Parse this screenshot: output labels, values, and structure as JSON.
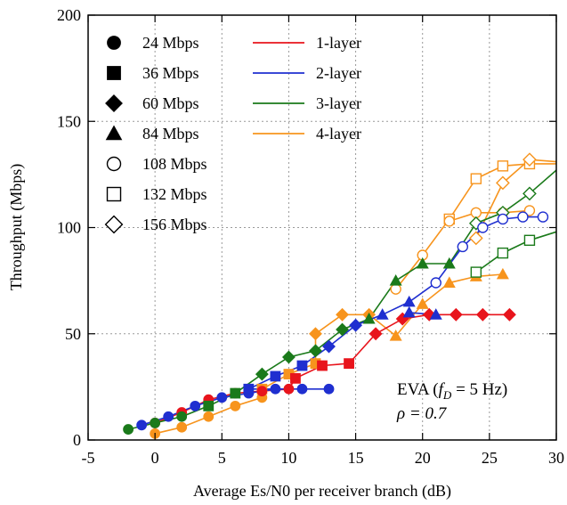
{
  "chart_data": {
    "type": "line",
    "xlabel": "Average Es/N0 per receiver branch (dB)",
    "ylabel": "Throughput (Mbps)",
    "xlim": [
      -5,
      30
    ],
    "ylim": [
      0,
      200
    ],
    "xticks": [
      "-5",
      "0",
      "5",
      "10",
      "15",
      "20",
      "25",
      "30"
    ],
    "yticks": [
      "0",
      "50",
      "100",
      "150",
      "200"
    ],
    "grid": true,
    "legend_markers": [
      {
        "label": "24 Mbps",
        "marker": "filled-circle"
      },
      {
        "label": "36 Mbps",
        "marker": "filled-square"
      },
      {
        "label": "60 Mbps",
        "marker": "filled-diamond"
      },
      {
        "label": "84 Mbps",
        "marker": "filled-triangle"
      },
      {
        "label": "108 Mbps",
        "marker": "open-circle"
      },
      {
        "label": "132 Mbps",
        "marker": "open-square"
      },
      {
        "label": "156 Mbps",
        "marker": "open-diamond"
      }
    ],
    "legend_lines": [
      {
        "label": "1-layer",
        "color": "#e8141c"
      },
      {
        "label": "2-layer",
        "color": "#1f2fd0"
      },
      {
        "label": "3-layer",
        "color": "#1a7a1a"
      },
      {
        "label": "4-layer",
        "color": "#f7941d"
      }
    ],
    "annotation": {
      "line1_prefix": "EVA (",
      "f_symbol": "f",
      "f_sub": "D",
      "line1_suffix": " = 5 Hz)",
      "rho": "ρ = 0.7"
    },
    "series": [
      {
        "layer": 1,
        "color": "#e8141c",
        "points": [
          {
            "x": 0,
            "y": 8,
            "m": "filled-circle"
          },
          {
            "x": 2,
            "y": 13,
            "m": "filled-circle"
          },
          {
            "x": 4,
            "y": 19,
            "m": "filled-circle"
          },
          {
            "x": 6,
            "y": 22,
            "m": "filled-circle"
          },
          {
            "x": 8,
            "y": 23,
            "m": "filled-circle"
          },
          {
            "x": 10,
            "y": 24,
            "m": "filled-circle"
          },
          {
            "x": 10.5,
            "y": 29,
            "m": "filled-square"
          },
          {
            "x": 12.5,
            "y": 35,
            "m": "filled-square"
          },
          {
            "x": 14.5,
            "y": 36,
            "m": "filled-square"
          },
          {
            "x": 16.5,
            "y": 50,
            "m": "filled-diamond"
          },
          {
            "x": 18.5,
            "y": 57,
            "m": "filled-diamond"
          },
          {
            "x": 20.5,
            "y": 59,
            "m": "filled-diamond"
          },
          {
            "x": 22.5,
            "y": 59,
            "m": "filled-diamond"
          },
          {
            "x": 24.5,
            "y": 59,
            "m": "filled-diamond"
          },
          {
            "x": 26.5,
            "y": 59,
            "m": "filled-diamond"
          }
        ]
      },
      {
        "layer": 2,
        "color": "#1f2fd0",
        "points": [
          {
            "x": -1,
            "y": 7,
            "m": "filled-circle"
          },
          {
            "x": 1,
            "y": 11,
            "m": "filled-circle"
          },
          {
            "x": 3,
            "y": 16,
            "m": "filled-circle"
          },
          {
            "x": 5,
            "y": 20,
            "m": "filled-circle"
          },
          {
            "x": 7,
            "y": 22,
            "m": "filled-circle"
          },
          {
            "x": 9,
            "y": 24,
            "m": "filled-circle"
          },
          {
            "x": 11,
            "y": 24,
            "m": "filled-circle"
          },
          {
            "x": 13,
            "y": 24,
            "m": "filled-circle"
          },
          {
            "x": 7,
            "y": 24,
            "m": "filled-square"
          },
          {
            "x": 9,
            "y": 30,
            "m": "filled-square"
          },
          {
            "x": 11,
            "y": 35,
            "m": "filled-square"
          },
          {
            "x": 13,
            "y": 44,
            "m": "filled-diamond"
          },
          {
            "x": 15,
            "y": 54,
            "m": "filled-diamond"
          },
          {
            "x": 17,
            "y": 59,
            "m": "filled-triangle"
          },
          {
            "x": 19,
            "y": 65,
            "m": "filled-triangle"
          },
          {
            "x": 21,
            "y": 74,
            "m": "open-circle"
          },
          {
            "x": 23,
            "y": 91,
            "m": "open-circle"
          },
          {
            "x": 24.5,
            "y": 100,
            "m": "open-circle"
          },
          {
            "x": 26,
            "y": 104,
            "m": "open-circle"
          },
          {
            "x": 27.5,
            "y": 105,
            "m": "open-circle"
          },
          {
            "x": 29,
            "y": 105,
            "m": "open-circle"
          }
        ],
        "flat": [
          {
            "x": 19,
            "y": 60,
            "m": "filled-triangle"
          },
          {
            "x": 21,
            "y": 59,
            "m": "filled-triangle"
          }
        ]
      },
      {
        "layer": 3,
        "color": "#1a7a1a",
        "points": [
          {
            "x": -2,
            "y": 5,
            "m": "filled-circle"
          },
          {
            "x": 0,
            "y": 8,
            "m": "filled-circle"
          },
          {
            "x": 2,
            "y": 11,
            "m": "filled-circle"
          },
          {
            "x": 4,
            "y": 16,
            "m": "filled-square"
          },
          {
            "x": 6,
            "y": 22,
            "m": "filled-square"
          },
          {
            "x": 8,
            "y": 31,
            "m": "filled-diamond"
          },
          {
            "x": 10,
            "y": 39,
            "m": "filled-diamond"
          },
          {
            "x": 12,
            "y": 42,
            "m": "filled-diamond"
          },
          {
            "x": 14,
            "y": 52,
            "m": "filled-diamond"
          },
          {
            "x": 16,
            "y": 57,
            "m": "filled-triangle"
          },
          {
            "x": 18,
            "y": 75,
            "m": "filled-triangle"
          },
          {
            "x": 20,
            "y": 83,
            "m": "filled-triangle"
          },
          {
            "x": 22,
            "y": 83,
            "m": "filled-triangle"
          },
          {
            "x": 24,
            "y": 102,
            "m": "open-diamond"
          },
          {
            "x": 26,
            "y": 107,
            "m": "open-diamond"
          },
          {
            "x": 28,
            "y": 116,
            "m": "open-diamond"
          },
          {
            "x": 30,
            "y": 127,
            "m": "none"
          }
        ],
        "flat": [
          {
            "x": 24,
            "y": 79,
            "m": "open-square"
          },
          {
            "x": 26,
            "y": 88,
            "m": "open-square"
          },
          {
            "x": 28,
            "y": 94,
            "m": "open-square"
          },
          {
            "x": 30,
            "y": 98,
            "m": "none"
          }
        ]
      },
      {
        "layer": 4,
        "color": "#f7941d",
        "points": [
          {
            "x": 0,
            "y": 3,
            "m": "filled-circle"
          },
          {
            "x": 2,
            "y": 6,
            "m": "filled-circle"
          },
          {
            "x": 4,
            "y": 11,
            "m": "filled-circle"
          },
          {
            "x": 6,
            "y": 16,
            "m": "filled-circle"
          },
          {
            "x": 8,
            "y": 20,
            "m": "filled-circle"
          },
          {
            "x": 8,
            "y": 24,
            "m": "filled-square"
          },
          {
            "x": 10,
            "y": 31,
            "m": "filled-square"
          },
          {
            "x": 12,
            "y": 36,
            "m": "filled-square"
          },
          {
            "x": 12,
            "y": 50,
            "m": "filled-diamond"
          },
          {
            "x": 14,
            "y": 59,
            "m": "filled-diamond"
          },
          {
            "x": 16,
            "y": 59,
            "m": "filled-diamond"
          },
          {
            "x": 18,
            "y": 49,
            "m": "filled-triangle"
          },
          {
            "x": 20,
            "y": 64,
            "m": "filled-triangle"
          },
          {
            "x": 22,
            "y": 74,
            "m": "filled-triangle"
          },
          {
            "x": 24,
            "y": 77,
            "m": "filled-triangle"
          },
          {
            "x": 26,
            "y": 78,
            "m": "filled-triangle"
          }
        ],
        "upper": [
          {
            "x": 18,
            "y": 71,
            "m": "open-circle"
          },
          {
            "x": 20,
            "y": 87,
            "m": "open-circle"
          },
          {
            "x": 22,
            "y": 104,
            "m": "open-square"
          },
          {
            "x": 24,
            "y": 123,
            "m": "open-square"
          },
          {
            "x": 26,
            "y": 129,
            "m": "open-square"
          },
          {
            "x": 28,
            "y": 130,
            "m": "open-square"
          },
          {
            "x": 30,
            "y": 130,
            "m": "none"
          }
        ],
        "upper2": [
          {
            "x": 22,
            "y": 103,
            "m": "open-circle"
          },
          {
            "x": 24,
            "y": 107,
            "m": "open-circle"
          },
          {
            "x": 26,
            "y": 107,
            "m": "open-circle"
          },
          {
            "x": 28,
            "y": 108,
            "m": "open-circle"
          }
        ],
        "upper3": [
          {
            "x": 24,
            "y": 95,
            "m": "open-diamond"
          },
          {
            "x": 26,
            "y": 121,
            "m": "open-diamond"
          },
          {
            "x": 28,
            "y": 132,
            "m": "open-diamond"
          },
          {
            "x": 30,
            "y": 131,
            "m": "none"
          }
        ]
      }
    ]
  }
}
